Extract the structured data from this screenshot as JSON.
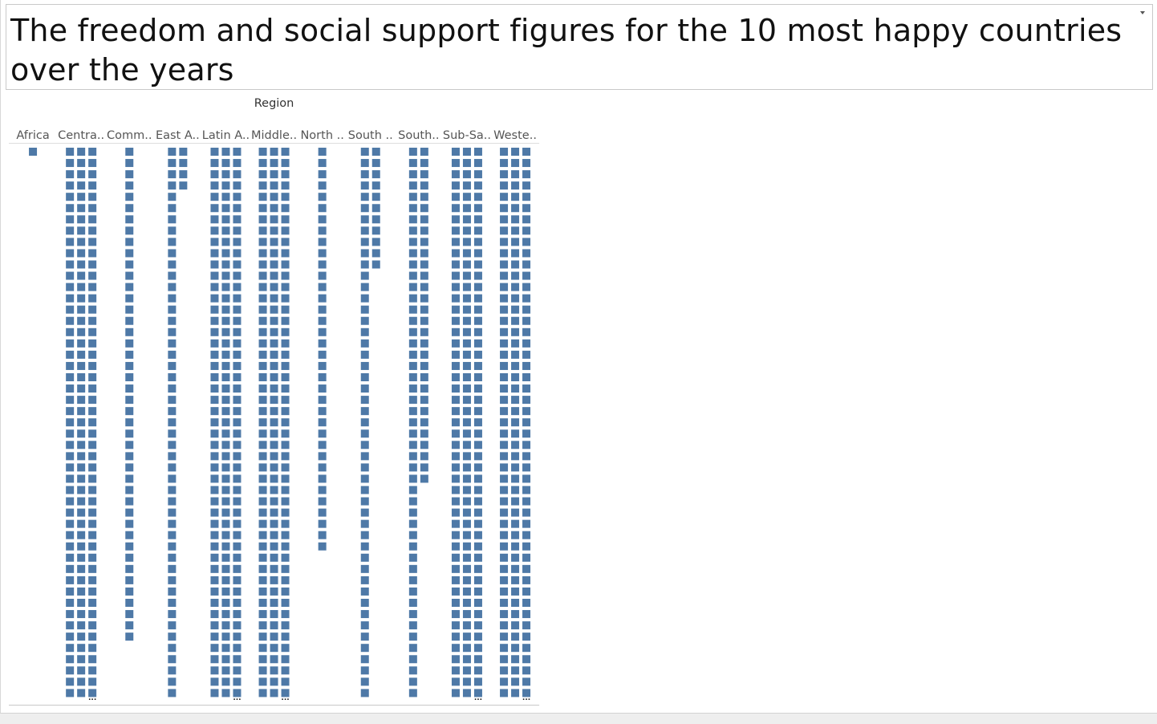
{
  "title": {
    "text": "The freedom and social support figures for the 10 most happy countries over the years"
  },
  "colors": {
    "mark": "#4e79a7",
    "header_text": "#555555",
    "axis_text": "#333333",
    "rule": "#c8c8c8"
  },
  "icons": {
    "title_menu": "caret-down-icon",
    "more_marks": "ellipsis-icon"
  },
  "chart_data": {
    "type": "table",
    "header": "Region",
    "categories": [
      "Africa",
      "Centra..",
      "Comm..",
      "East A..",
      "Latin A..",
      "Middle..",
      "North ..",
      "South ..",
      "South..",
      "Sub-Sa..",
      "Weste.."
    ],
    "columns": [
      {
        "label": "Africa",
        "full_rows": 1,
        "cols": 1,
        "rem_rows": 0,
        "truncated": false
      },
      {
        "label": "Centra..",
        "full_rows": 49,
        "cols": 3,
        "rem_rows": 0,
        "truncated": true
      },
      {
        "label": "Comm..",
        "full_rows": 44,
        "cols": 1,
        "rem_rows": 0,
        "truncated": false
      },
      {
        "label": "East A..",
        "full_rows": 4,
        "cols": 2,
        "rem_rows": 45,
        "truncated": false
      },
      {
        "label": "Latin A..",
        "full_rows": 49,
        "cols": 3,
        "rem_rows": 0,
        "truncated": true
      },
      {
        "label": "Middle..",
        "full_rows": 49,
        "cols": 3,
        "rem_rows": 0,
        "truncated": true
      },
      {
        "label": "North ..",
        "full_rows": 36,
        "cols": 1,
        "rem_rows": 0,
        "truncated": false
      },
      {
        "label": "South ..",
        "full_rows": 11,
        "cols": 2,
        "rem_rows": 38,
        "truncated": false
      },
      {
        "label": "South..",
        "full_rows": 30,
        "cols": 2,
        "rem_rows": 19,
        "truncated": false
      },
      {
        "label": "Sub-Sa..",
        "full_rows": 49,
        "cols": 3,
        "rem_rows": 0,
        "truncated": true
      },
      {
        "label": "Weste..",
        "full_rows": 49,
        "cols": 3,
        "rem_rows": 0,
        "truncated": true
      }
    ],
    "overflow_marker": "...",
    "grid": false,
    "legend": "none"
  }
}
